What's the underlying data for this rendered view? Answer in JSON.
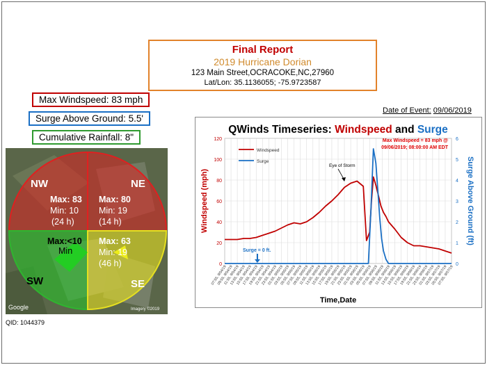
{
  "report": {
    "title": "Final Report",
    "subtitle": "2019 Hurricane Dorian",
    "address": "123 Main Street,OCRACOKE,NC,27960",
    "latlon": "Lat/Lon: 35.1136055; -75.9723587"
  },
  "stats": {
    "windspeed": "Max Windspeed: 83 mph",
    "surge": "Surge Above Ground: 5.5'",
    "rainfall": "Cumulative Rainfall: 8\""
  },
  "event": {
    "label": "Date of Event:",
    "date": "09/06/2019"
  },
  "qid": "QID: 1044379",
  "map": {
    "google": "Google",
    "imagery": "Imagery ©2019",
    "quadrants": {
      "nw": {
        "dir": "NW",
        "max": "Max: 83",
        "min": "Min: 10",
        "dur": "(24 h)",
        "color": "#e02020"
      },
      "ne": {
        "dir": "NE",
        "max": "Max: 80",
        "min": "Min: 19",
        "dur": "(14 h)",
        "color": "#e02020"
      },
      "sw": {
        "dir": "SW",
        "max": "Max:<10",
        "min": "Min",
        "dur": "",
        "color": "#2fb52f"
      },
      "se": {
        "dir": "SE",
        "max": "Max: 63",
        "min": "Min: 19",
        "dur": "(46 h)",
        "color": "#e6e020"
      }
    }
  },
  "chart_data": {
    "type": "line",
    "title_parts": [
      {
        "text": "QWinds Timeseries: ",
        "color": "#000000"
      },
      {
        "text": "Windspeed",
        "color": "#c00000"
      },
      {
        "text": " and ",
        "color": "#000000"
      },
      {
        "text": "Surge",
        "color": "#1a6fc4"
      }
    ],
    "xlabel": "Time,Date",
    "ylabel_left": "Windspeed (mph)",
    "ylabel_right": "Surge Above Ground (ft)",
    "ylim_left": [
      0,
      120
    ],
    "ylim_right": [
      0,
      6
    ],
    "yticks_left": [
      0,
      20,
      40,
      60,
      80,
      100,
      120
    ],
    "yticks_right": [
      0,
      1,
      2,
      3,
      4,
      5,
      6
    ],
    "xticks": [
      "07:55, 9/04/19",
      "09:55, 9/04/19",
      "11:55, 9/04/19",
      "13:55, 9/04/19",
      "15:55, 9/04/19",
      "17:55, 9/04/19",
      "19:55, 9/04/19",
      "21:55, 9/04/19",
      "23:55, 9/04/19",
      "01:55, 9/05/19",
      "03:55, 9/05/19",
      "05:55, 9/05/19",
      "07:55, 9/05/19",
      "09:55, 9/05/19",
      "11:55, 9/05/19",
      "13:55, 9/05/19",
      "15:55, 9/05/19",
      "17:55, 9/05/19",
      "19:55, 9/05/19",
      "21:55, 9/05/19",
      "23:55, 9/05/19",
      "01:55, 9/06/19",
      "03:55, 9/06/19",
      "05:55, 9/06/19",
      "07:55, 9/06/19",
      "09:55, 9/06/19",
      "11:55, 9/06/19",
      "13:55, 9/06/19",
      "15:55, 9/06/19",
      "17:55, 9/06/19",
      "19:55, 9/06/19",
      "21:55, 9/06/19",
      "23:55, 9/06/19",
      "01:55, 9/07/19",
      "03:55, 9/07/19",
      "05:55, 9/07/19",
      "07:55, 9/07/19"
    ],
    "legend": [
      {
        "name": "Windspeed",
        "color": "#c00000"
      },
      {
        "name": "Surge",
        "color": "#1a6fc4"
      }
    ],
    "legend_position": "top-left",
    "grid": true,
    "annotations": {
      "max_wind_line1": "Max Windspeed = 83 mph @",
      "max_wind_line2": "09/06/2019; 08:00:00 AM EDT",
      "eye": "Eye of Storm",
      "surge_zero": "Surge = 0 ft."
    },
    "series": [
      {
        "name": "Windspeed",
        "axis": "left",
        "color": "#c00000",
        "x": [
          0,
          1,
          2,
          3,
          4,
          5,
          6,
          7,
          8,
          9,
          10,
          11,
          12,
          13,
          14,
          15,
          16,
          17,
          18,
          19,
          20,
          21,
          22,
          22.5,
          23,
          23.3,
          23.6,
          24,
          24.4,
          24.8,
          25.2,
          25.6,
          26,
          27,
          28,
          29,
          30,
          31,
          32,
          33,
          34,
          35,
          36
        ],
        "values": [
          23,
          23,
          23,
          24,
          24,
          25,
          27,
          29,
          31,
          34,
          37,
          39,
          38,
          40,
          44,
          49,
          55,
          60,
          66,
          73,
          77,
          79,
          74,
          22,
          30,
          60,
          83,
          75,
          65,
          55,
          49,
          45,
          40,
          33,
          25,
          20,
          17,
          17,
          16,
          15,
          14,
          12,
          10
        ]
      },
      {
        "name": "Surge",
        "axis": "right",
        "color": "#1a6fc4",
        "x": [
          0,
          5,
          10,
          15,
          20,
          22.8,
          23.2,
          23.6,
          24.0,
          24.3,
          24.6,
          24.9,
          25.2,
          25.6,
          26,
          27,
          30,
          36
        ],
        "values": [
          0,
          0,
          0,
          0,
          0,
          0,
          2.5,
          5.5,
          4.8,
          3.5,
          2.2,
          1.2,
          0.6,
          0.2,
          0,
          0,
          0,
          0
        ]
      }
    ]
  }
}
